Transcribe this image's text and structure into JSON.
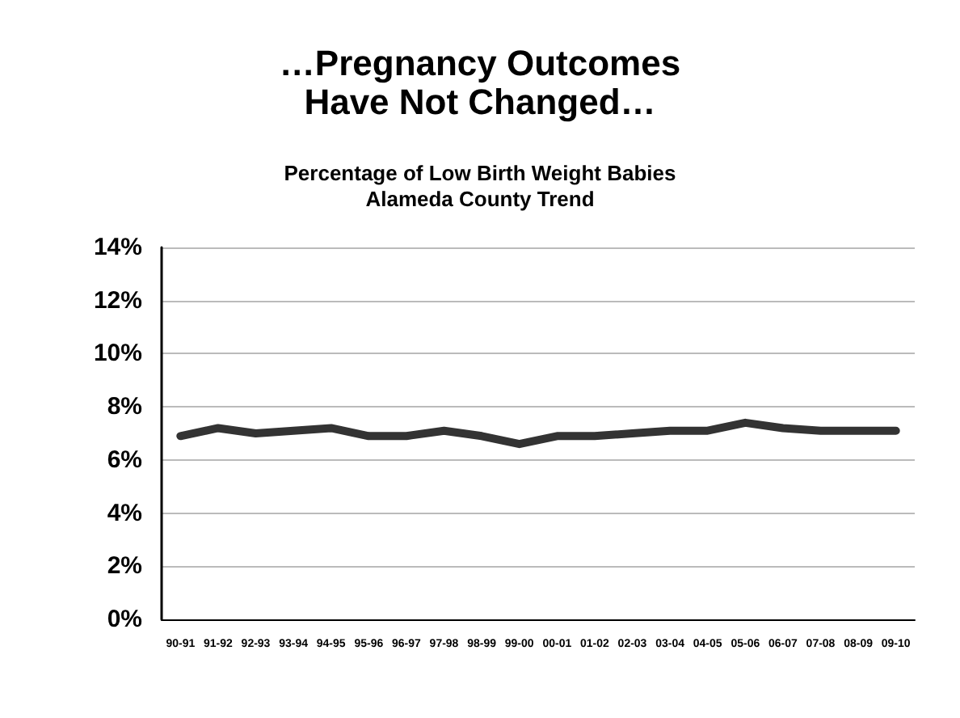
{
  "chart_data": {
    "type": "line",
    "title": "…Pregnancy Outcomes\nHave Not Changed…",
    "subtitle": "Percentage of Low Birth Weight Babies\nAlameda County Trend",
    "categories": [
      "90-91",
      "91-92",
      "92-93",
      "93-94",
      "94-95",
      "95-96",
      "96-97",
      "97-98",
      "98-99",
      "99-00",
      "00-01",
      "01-02",
      "02-03",
      "03-04",
      "04-05",
      "05-06",
      "06-07",
      "07-08",
      "08-09",
      "09-10"
    ],
    "series": [
      {
        "color": "#333333",
        "values": [
          6.9,
          7.2,
          7.0,
          7.1,
          7.2,
          6.9,
          6.9,
          7.1,
          6.9,
          6.6,
          6.9,
          6.9,
          7.0,
          7.1,
          7.1,
          7.4,
          7.2,
          7.1,
          7.1,
          7.1
        ]
      }
    ],
    "ylim": [
      0,
      14
    ],
    "yticks": [
      {
        "value": 0,
        "label": "0%"
      },
      {
        "value": 2,
        "label": "2%"
      },
      {
        "value": 4,
        "label": "4%"
      },
      {
        "value": 6,
        "label": "6%"
      },
      {
        "value": 8,
        "label": "8%"
      },
      {
        "value": 10,
        "label": "10%"
      },
      {
        "value": 12,
        "label": "12%"
      },
      {
        "value": 14,
        "label": "14%"
      }
    ],
    "grid": "y",
    "marker": "none",
    "line_style": "solid"
  }
}
